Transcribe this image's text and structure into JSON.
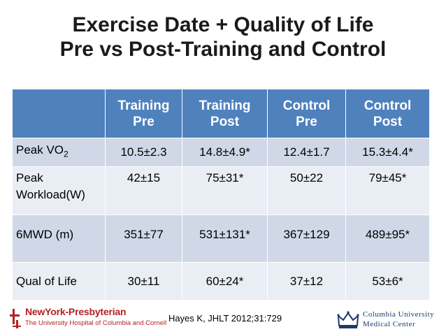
{
  "title": {
    "line1": "Exercise Date + Quality of Life",
    "line2": "Pre vs Post-Training and Control"
  },
  "table": {
    "columns": [
      {
        "line1": "",
        "line2": ""
      },
      {
        "line1": "Training",
        "line2": "Pre"
      },
      {
        "line1": "Training",
        "line2": "Post"
      },
      {
        "line1": "Control",
        "line2": "Pre"
      },
      {
        "line1": "Control",
        "line2": "Post"
      }
    ],
    "rows": [
      {
        "label_main": "Peak VO",
        "label_sub": "2",
        "values": [
          "10.5±2.3",
          "14.8±4.9*",
          "12.4±1.7",
          "15.3±4.4*"
        ]
      },
      {
        "label_line1": "Peak",
        "label_line2": "Workload(W)",
        "values": [
          "42±15",
          "75±31*",
          "50±22",
          "79±45*"
        ]
      },
      {
        "label": "6MWD (m)",
        "values": [
          "351±77",
          "531±131*",
          "367±129",
          "489±95*"
        ]
      },
      {
        "label": "Qual of Life",
        "values": [
          "30±11",
          "60±24*",
          "37±12",
          "53±6*"
        ]
      }
    ]
  },
  "citation": "Hayes K, JHLT 2012;31:729",
  "logo_left": {
    "name": "NewYork-Presbyterian",
    "subtitle": "The University Hospital of Columbia and Cornell"
  },
  "logo_right": {
    "line1": "Columbia University",
    "line2": "Medical Center"
  },
  "colors": {
    "header_bg": "#4f81bd",
    "row_dark": "#d0d8e8",
    "row_light": "#e9edf4",
    "nyp_red": "#b22222",
    "columbia_blue": "#1f3b6a"
  }
}
